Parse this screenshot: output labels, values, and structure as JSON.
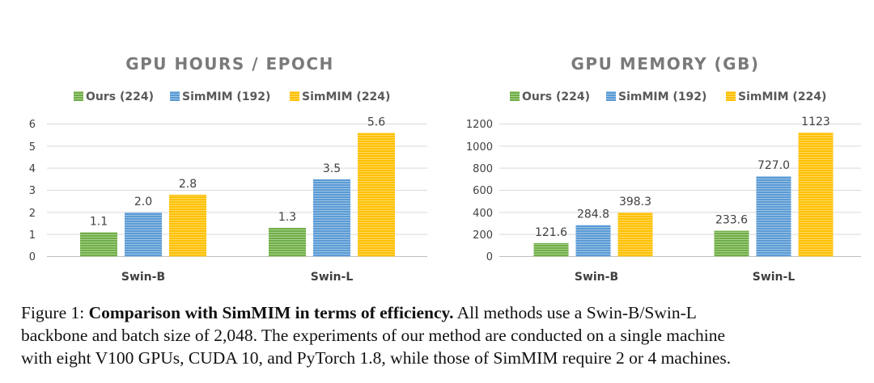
{
  "colors": {
    "green": "#70ad47",
    "blue": "#5b9bd5",
    "yellow": "#ffc000",
    "grid": "#d9d9d9",
    "title": "#7a7a7a"
  },
  "chart_data": [
    {
      "type": "bar",
      "title": "GPU HOURS / EPOCH",
      "categories": [
        "Swin-B",
        "Swin-L"
      ],
      "series": [
        {
          "name": "Ours (224)",
          "values": [
            1.1,
            1.3
          ],
          "labels": [
            "1.1",
            "1.3"
          ],
          "color": "#70ad47"
        },
        {
          "name": "SimMIM (192)",
          "values": [
            2.0,
            3.5
          ],
          "labels": [
            "2.0",
            "3.5"
          ],
          "color": "#5b9bd5"
        },
        {
          "name": "SimMIM (224)",
          "values": [
            2.8,
            5.6
          ],
          "labels": [
            "2.8",
            "5.6"
          ],
          "color": "#ffc000"
        }
      ],
      "yticks": [
        "0",
        "1",
        "2",
        "3",
        "4",
        "5",
        "6"
      ],
      "ylim": [
        0,
        6
      ],
      "legend_position": "top",
      "grid": true
    },
    {
      "type": "bar",
      "title": "GPU MEMORY (GB)",
      "categories": [
        "Swin-B",
        "Swin-L"
      ],
      "series": [
        {
          "name": "Ours (224)",
          "values": [
            121.6,
            233.6
          ],
          "labels": [
            "121.6",
            "233.6"
          ],
          "color": "#70ad47"
        },
        {
          "name": "SimMIM (192)",
          "values": [
            284.8,
            727.0
          ],
          "labels": [
            "284.8",
            "727.0"
          ],
          "color": "#5b9bd5"
        },
        {
          "name": "SimMIM (224)",
          "values": [
            398.3,
            1123
          ],
          "labels": [
            "398.3",
            "1123"
          ],
          "color": "#ffc000"
        }
      ],
      "yticks": [
        "0",
        "200",
        "400",
        "600",
        "800",
        "1000",
        "1200"
      ],
      "ylim": [
        0,
        1200
      ],
      "legend_position": "top",
      "grid": true
    }
  ],
  "caption": {
    "label": "Figure 1:",
    "bold": "Comparison with SimMIM in terms of efficiency.",
    "rest_line1": "All methods use a Swin-B/Swin-L",
    "line2": "backbone and batch size of 2,048. The experiments of our method are conducted on a single machine",
    "line3": "with eight V100 GPUs, CUDA 10, and PyTorch 1.8, while those of SimMIM require 2 or 4 machines."
  }
}
